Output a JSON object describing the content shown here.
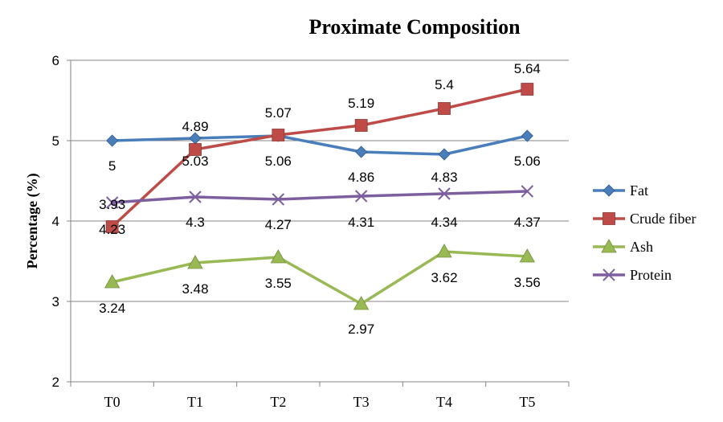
{
  "chart_data": {
    "type": "line",
    "title": "Proximate Composition",
    "xlabel": "",
    "ylabel": "Percentage (%)",
    "categories": [
      "T0",
      "T1",
      "T2",
      "T3",
      "T4",
      "T5"
    ],
    "ylim": [
      2,
      6
    ],
    "yticks": [
      2,
      3,
      4,
      5,
      6
    ],
    "grid": true,
    "legend": "right",
    "series": [
      {
        "name": "Fat",
        "values": [
          5,
          5.03,
          5.06,
          4.86,
          4.83,
          5.06
        ],
        "color": "#4a7ebb",
        "marker": "diamond",
        "labels": [
          "5",
          "5.03",
          "5.06",
          "4.86",
          "4.83",
          "5.06"
        ]
      },
      {
        "name": "Crude fiber",
        "values": [
          3.93,
          4.89,
          5.07,
          5.19,
          5.4,
          5.64
        ],
        "color": "#be4b48",
        "marker": "square",
        "labels": [
          "3.93",
          "4.89",
          "5.07",
          "5.19",
          "5.4",
          "5.64"
        ]
      },
      {
        "name": "Ash",
        "values": [
          3.24,
          3.48,
          3.55,
          2.97,
          3.62,
          3.56
        ],
        "color": "#98b954",
        "marker": "triangle",
        "labels": [
          "3.24",
          "3.48",
          "3.55",
          "2.97",
          "3.62",
          "3.56"
        ]
      },
      {
        "name": "Protein",
        "values": [
          4.23,
          4.3,
          4.27,
          4.31,
          4.34,
          4.37
        ],
        "color": "#7d5fa0",
        "marker": "x",
        "labels": [
          "4.23",
          "4.3",
          "4.27",
          "4.31",
          "4.34",
          "4.37"
        ]
      }
    ]
  }
}
